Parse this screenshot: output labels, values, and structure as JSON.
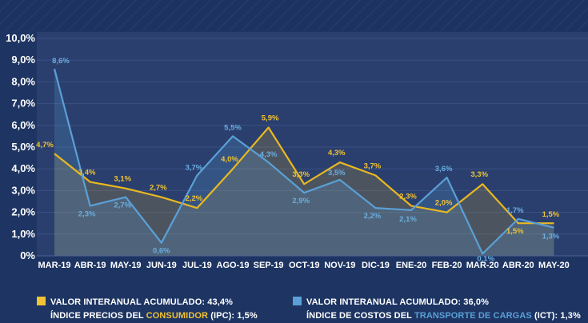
{
  "chart_data": {
    "type": "line",
    "categories": [
      "MAR-19",
      "ABR-19",
      "MAY-19",
      "JUN-19",
      "JUL-19",
      "AGO-19",
      "SEP-19",
      "OCT-19",
      "NOV-19",
      "DIC-19",
      "ENE-20",
      "FEB-20",
      "MAR-20",
      "ABR-20",
      "MAY-20"
    ],
    "ylim": [
      0,
      10
    ],
    "y_ticks": [
      "0%",
      "1,0%",
      "2,0%",
      "3,0%",
      "4,0%",
      "5,0%",
      "6,0%",
      "7,0%",
      "8,0%",
      "9,0%",
      "10,0%"
    ],
    "grid": true,
    "series": [
      {
        "name": "ÍNDICE PRECIOS DEL CONSUMIDOR (IPC)",
        "color": "#e8b820",
        "values": [
          4.7,
          3.4,
          3.1,
          2.7,
          2.2,
          4.0,
          5.9,
          3.3,
          4.3,
          3.7,
          2.3,
          2.0,
          3.3,
          1.5,
          1.5
        ],
        "labels": [
          "4,7%",
          "3,4%",
          "3,1%",
          "2,7%",
          "2,2%",
          "4,0%",
          "5,9%",
          "3,3%",
          "4,3%",
          "3,7%",
          "2,3%",
          "2,0%",
          "3,3%",
          "1,5%",
          "1,5%"
        ]
      },
      {
        "name": "ÍNDICE DE COSTOS DEL TRANSPORTE DE CARGAS (ICT)",
        "color": "#5aa0d6",
        "values": [
          8.6,
          2.3,
          2.7,
          0.6,
          3.7,
          5.5,
          4.3,
          2.9,
          3.5,
          2.2,
          2.1,
          3.6,
          0.1,
          1.7,
          1.3
        ],
        "labels": [
          "8,6%",
          "2,3%",
          "2,7%",
          "0,6%",
          "3,7%",
          "5,5%",
          "4,3%",
          "2,9%",
          "3,5%",
          "2,2%",
          "2,1%",
          "3,6%",
          "0,1%",
          "1,7%",
          "1,3%"
        ]
      }
    ]
  },
  "legend": {
    "ipc": {
      "color": "#f1c232",
      "line1": "VALOR INTERANUAL ACUMULADO: 43,4%",
      "line2_pre": "ÍNDICE PRECIOS DEL ",
      "line2_hl": "CONSUMIDOR",
      "line2_post": " (IPC): 1,5%"
    },
    "ict": {
      "color": "#5aa0d6",
      "line1": "VALOR INTERANUAL ACUMULADO: 36,0%",
      "line2_pre": "ÍNDICE DE COSTOS DEL ",
      "line2_hl": "TRANSPORTE DE CARGAS",
      "line2_post": " (ICT): 1,3%"
    }
  }
}
